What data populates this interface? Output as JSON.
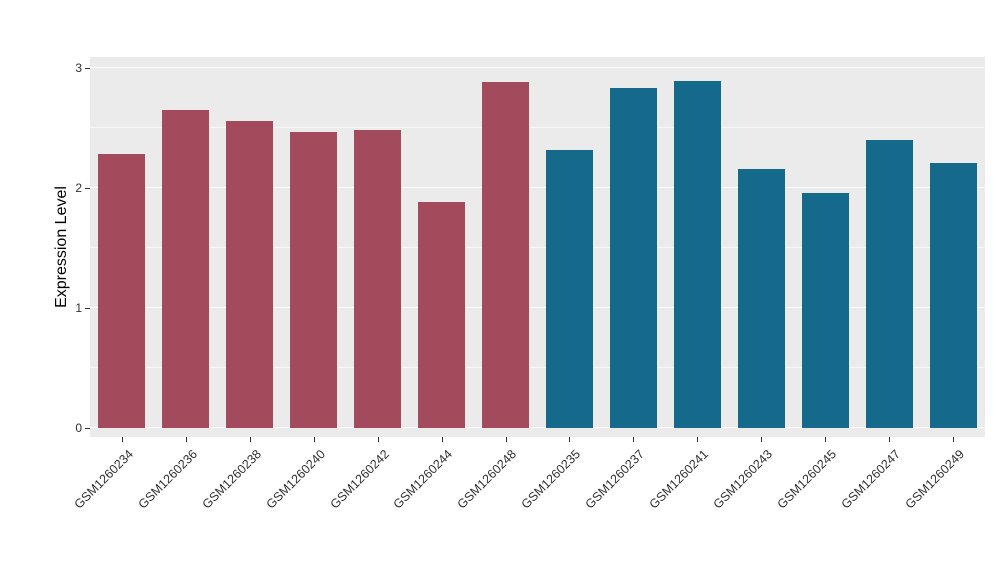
{
  "chart_data": {
    "type": "bar",
    "title": "",
    "xlabel": "",
    "ylabel": "Expression Level",
    "ylim": [
      0,
      3
    ],
    "yticks": [
      {
        "label": "0",
        "value": 0
      },
      {
        "label": "1",
        "value": 1
      },
      {
        "label": "2",
        "value": 2
      },
      {
        "label": "3",
        "value": 3
      }
    ],
    "grid": {
      "major": [
        0,
        1,
        2,
        3
      ],
      "minor": [
        0.5,
        1.5,
        2.5
      ]
    },
    "panel_background": "#EBEBEB",
    "grid_color": "#FFFFFF",
    "group_colors": {
      "groupA": "#A34A5C",
      "groupB": "#15698B"
    },
    "legend": "none",
    "bars": [
      {
        "label": "GSM1260234",
        "value": 2.28,
        "group": "groupA"
      },
      {
        "label": "GSM1260236",
        "value": 2.65,
        "group": "groupA"
      },
      {
        "label": "GSM1260238",
        "value": 2.56,
        "group": "groupA"
      },
      {
        "label": "GSM1260240",
        "value": 2.47,
        "group": "groupA"
      },
      {
        "label": "GSM1260242",
        "value": 2.48,
        "group": "groupA"
      },
      {
        "label": "GSM1260244",
        "value": 1.88,
        "group": "groupA"
      },
      {
        "label": "GSM1260248",
        "value": 2.88,
        "group": "groupA"
      },
      {
        "label": "GSM1260235",
        "value": 2.32,
        "group": "groupB"
      },
      {
        "label": "GSM1260237",
        "value": 2.83,
        "group": "groupB"
      },
      {
        "label": "GSM1260241",
        "value": 2.89,
        "group": "groupB"
      },
      {
        "label": "GSM1260243",
        "value": 2.16,
        "group": "groupB"
      },
      {
        "label": "GSM1260245",
        "value": 1.96,
        "group": "groupB"
      },
      {
        "label": "GSM1260247",
        "value": 2.4,
        "group": "groupB"
      },
      {
        "label": "GSM1260249",
        "value": 2.21,
        "group": "groupB"
      }
    ]
  }
}
